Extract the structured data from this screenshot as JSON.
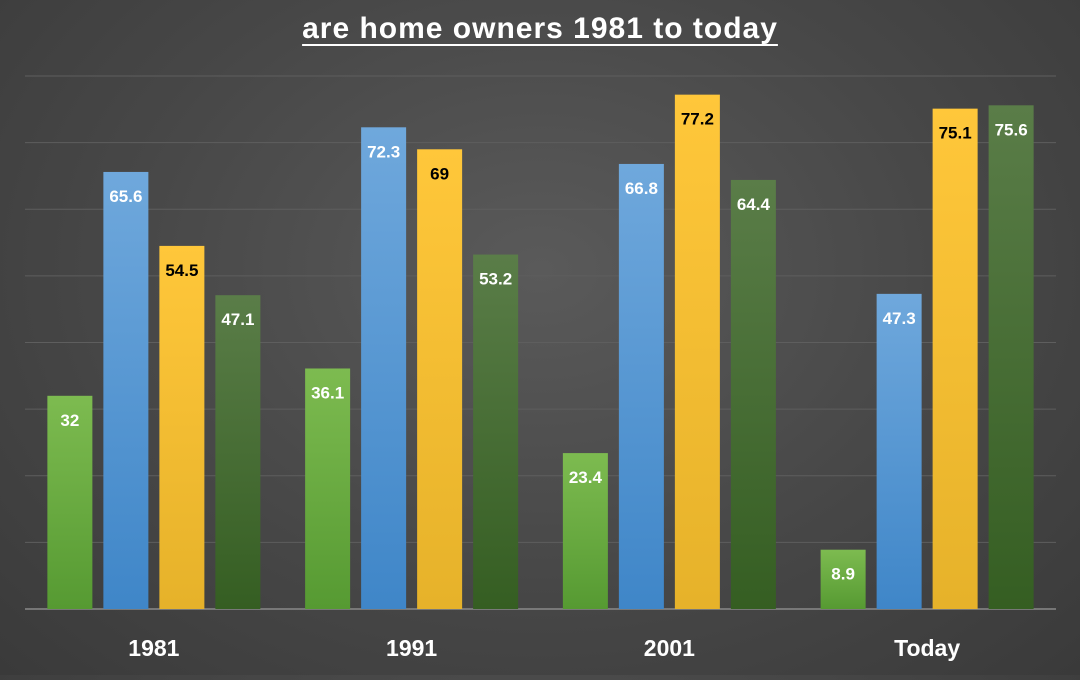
{
  "chart_data": {
    "type": "bar",
    "title_lines": [
      "",
      "are home owners 1981 to today"
    ],
    "categories": [
      "1981",
      "1991",
      "2001",
      "Today"
    ],
    "series": [
      {
        "values": [
          32,
          36.1,
          23.4,
          8.9
        ],
        "color_top": "#7dbb50",
        "color_bottom": "#569a32",
        "label_color": "#ffffff"
      },
      {
        "values": [
          65.6,
          72.3,
          66.8,
          47.3
        ],
        "color_top": "#6fa8dc",
        "color_bottom": "#3f86c8",
        "label_color": "#ffffff"
      },
      {
        "values": [
          54.5,
          69,
          77.2,
          75.1
        ],
        "color_top": "#ffc73a",
        "color_bottom": "#e6b22a",
        "label_color": "#000000"
      },
      {
        "values": [
          47.1,
          53.2,
          64.4,
          75.6
        ],
        "color_top": "#5a7d48",
        "color_bottom": "#355e22",
        "label_color": "#ffffff"
      }
    ],
    "ylim": [
      0,
      80
    ],
    "grid": true,
    "legend": "none"
  }
}
